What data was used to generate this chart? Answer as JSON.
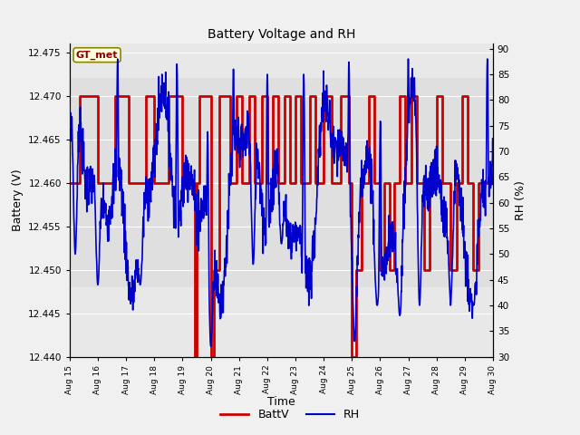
{
  "title": "Battery Voltage and RH",
  "xlabel": "Time",
  "ylabel_left": "Battery (V)",
  "ylabel_right": "RH (%)",
  "annotation": "GT_met",
  "ylim_left": [
    12.44,
    12.476
  ],
  "ylim_right": [
    30,
    91
  ],
  "yticks_left": [
    12.44,
    12.445,
    12.45,
    12.455,
    12.46,
    12.465,
    12.47,
    12.475
  ],
  "yticks_right": [
    30,
    35,
    40,
    45,
    50,
    55,
    60,
    65,
    70,
    75,
    80,
    85,
    90
  ],
  "xtick_labels": [
    "Aug 15",
    "Aug 16",
    "Aug 17",
    "Aug 18",
    "Aug 19",
    "Aug 20",
    "Aug 21",
    "Aug 22",
    "Aug 23",
    "Aug 24",
    "Aug 25",
    "Aug 26",
    "Aug 27",
    "Aug 28",
    "Aug 29",
    "Aug 30"
  ],
  "fig_bg": "#f0f0f0",
  "plot_bg": "#e8e8e8",
  "grid_color": "#ffffff",
  "batt_color": "#cc0000",
  "rh_color": "#0000cc",
  "legend_batt": "BattV",
  "legend_rh": "RH",
  "batt_linewidth": 2.0,
  "rh_linewidth": 1.2,
  "shaded_band_ylim": [
    12.448,
    12.472
  ],
  "shaded_band_color": "#d8d8d8"
}
